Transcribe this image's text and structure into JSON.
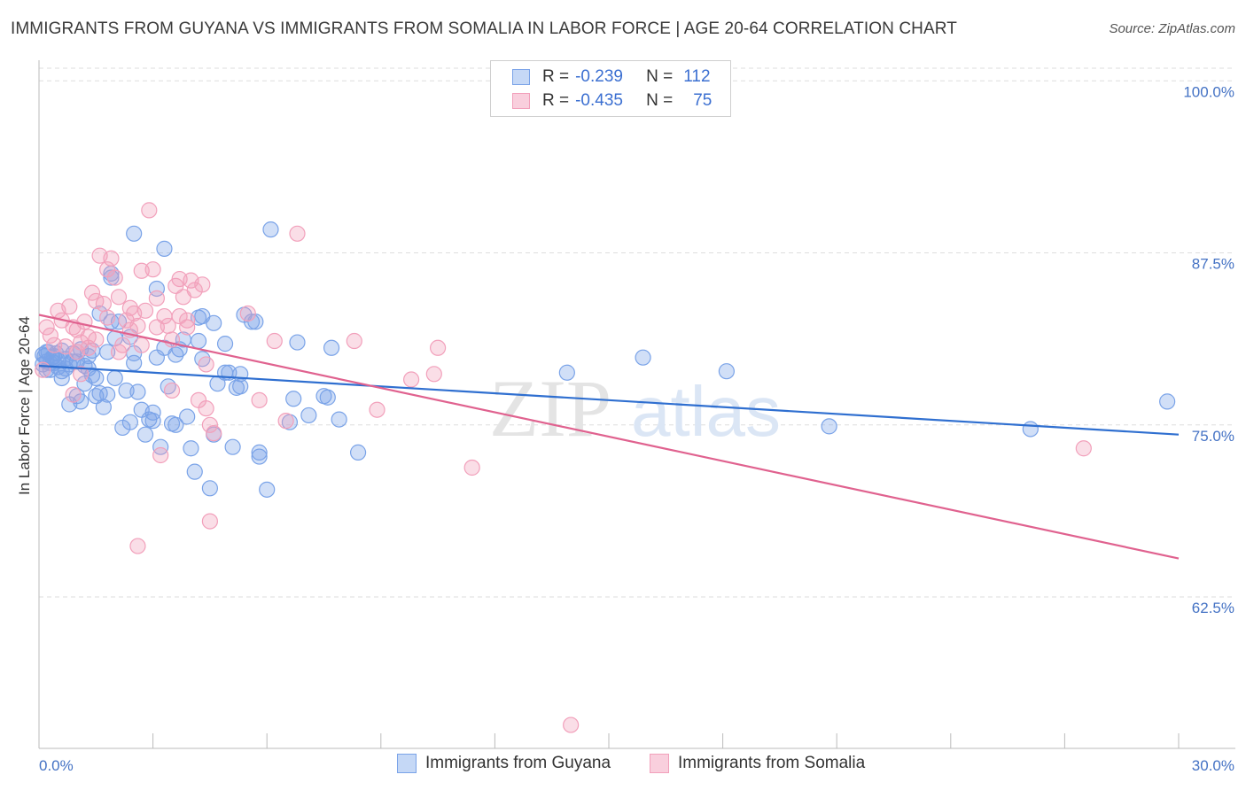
{
  "title": "IMMIGRANTS FROM GUYANA VS IMMIGRANTS FROM SOMALIA IN LABOR FORCE | AGE 20-64 CORRELATION CHART",
  "source": "Source: ZipAtlas.com",
  "watermark": {
    "zip": "ZIP",
    "atlas": "atlas"
  },
  "legend": {
    "row1": {
      "r_label": "R =",
      "r_value": "-0.239",
      "n_label": "N =",
      "n_value": "112"
    },
    "row2": {
      "r_label": "R =",
      "r_value": "-0.435",
      "n_label": "N =",
      "n_value": "75"
    }
  },
  "bottom_legend": {
    "guyana": "Immigrants from Guyana",
    "somalia": "Immigrants from Somalia"
  },
  "colors": {
    "guyana": "#7aa3e8",
    "guyana_line": "#2f6fd0",
    "somalia": "#f2a0bb",
    "somalia_line": "#e0628f",
    "axis_text": "#4472c4",
    "grid": "#dddddd"
  },
  "chart_data": {
    "type": "scatter",
    "title": "IMMIGRANTS FROM GUYANA VS IMMIGRANTS FROM SOMALIA IN LABOR FORCE | AGE 20-64 CORRELATION CHART",
    "xlabel": "",
    "ylabel": "In Labor Force | Age 20-64",
    "xlim": [
      0,
      30
    ],
    "ylim": [
      51.5,
      101.5
    ],
    "x_tick_labels": [
      "0.0%",
      "30.0%"
    ],
    "y_ticks": [
      62.5,
      75.0,
      87.5,
      100.0
    ],
    "y_tick_labels": [
      "62.5%",
      "75.0%",
      "87.5%",
      "100.0%"
    ],
    "series": [
      {
        "name": "Immigrants from Guyana",
        "r": -0.239,
        "n": 112,
        "trend": {
          "x": [
            0,
            30
          ],
          "y": [
            79.3,
            74.3
          ]
        },
        "points": [
          [
            0.1,
            80.1
          ],
          [
            0.2,
            79.6
          ],
          [
            0.2,
            80.3
          ],
          [
            0.3,
            79.5
          ],
          [
            0.4,
            80.0
          ],
          [
            0.5,
            79.2
          ],
          [
            0.5,
            79.7
          ],
          [
            0.6,
            80.4
          ],
          [
            0.7,
            79.8
          ],
          [
            0.8,
            79.4
          ],
          [
            0.9,
            80.2
          ],
          [
            1.0,
            79.6
          ],
          [
            1.1,
            80.5
          ],
          [
            1.2,
            79.3
          ],
          [
            1.3,
            80.0
          ],
          [
            0.3,
            79.0
          ],
          [
            0.6,
            78.4
          ],
          [
            0.8,
            76.5
          ],
          [
            1.0,
            77.1
          ],
          [
            1.2,
            78.0
          ],
          [
            1.4,
            78.6
          ],
          [
            1.5,
            78.4
          ],
          [
            1.6,
            77.3
          ],
          [
            1.7,
            76.3
          ],
          [
            1.8,
            77.2
          ],
          [
            1.9,
            82.5
          ],
          [
            2.0,
            81.3
          ],
          [
            2.2,
            74.8
          ],
          [
            2.3,
            77.5
          ],
          [
            2.4,
            75.2
          ],
          [
            2.5,
            79.5
          ],
          [
            2.6,
            77.4
          ],
          [
            2.8,
            74.3
          ],
          [
            2.9,
            75.4
          ],
          [
            3.0,
            75.9
          ],
          [
            3.1,
            79.9
          ],
          [
            3.2,
            73.4
          ],
          [
            3.3,
            80.6
          ],
          [
            3.4,
            77.8
          ],
          [
            3.5,
            75.1
          ],
          [
            3.6,
            80.1
          ],
          [
            3.7,
            80.5
          ],
          [
            3.8,
            81.2
          ],
          [
            3.9,
            75.6
          ],
          [
            4.0,
            73.3
          ],
          [
            4.1,
            71.6
          ],
          [
            4.2,
            81.1
          ],
          [
            4.3,
            79.8
          ],
          [
            4.5,
            70.4
          ],
          [
            4.6,
            74.3
          ],
          [
            4.7,
            78.0
          ],
          [
            4.9,
            80.9
          ],
          [
            5.0,
            78.8
          ],
          [
            5.1,
            73.4
          ],
          [
            5.2,
            77.7
          ],
          [
            5.3,
            78.7
          ],
          [
            5.6,
            82.5
          ],
          [
            5.8,
            72.7
          ],
          [
            6.0,
            70.3
          ],
          [
            6.6,
            75.2
          ],
          [
            6.7,
            76.9
          ],
          [
            7.1,
            75.7
          ],
          [
            7.5,
            77.1
          ],
          [
            7.6,
            77.0
          ],
          [
            7.9,
            75.4
          ],
          [
            8.4,
            73.0
          ],
          [
            2.5,
            88.9
          ],
          [
            3.3,
            87.8
          ],
          [
            6.1,
            89.2
          ],
          [
            3.1,
            84.9
          ],
          [
            1.9,
            85.7
          ],
          [
            1.9,
            86.0
          ],
          [
            4.2,
            82.8
          ],
          [
            4.3,
            82.9
          ],
          [
            4.6,
            82.4
          ],
          [
            5.4,
            83.0
          ],
          [
            5.7,
            82.5
          ],
          [
            1.6,
            83.1
          ],
          [
            2.1,
            82.5
          ],
          [
            2.4,
            81.4
          ],
          [
            6.8,
            81.0
          ],
          [
            7.7,
            80.6
          ],
          [
            1.4,
            80.4
          ],
          [
            1.8,
            80.3
          ],
          [
            2.5,
            80.2
          ],
          [
            3.0,
            75.3
          ],
          [
            3.6,
            75.0
          ],
          [
            1.1,
            76.7
          ],
          [
            0.7,
            79.1
          ],
          [
            0.4,
            79.5
          ],
          [
            0.2,
            79.0
          ],
          [
            0.1,
            79.4
          ],
          [
            0.15,
            80.0
          ],
          [
            0.25,
            80.3
          ],
          [
            0.35,
            79.9
          ],
          [
            0.45,
            80.2
          ],
          [
            13.9,
            78.8
          ],
          [
            15.9,
            79.9
          ],
          [
            18.1,
            78.9
          ],
          [
            20.8,
            74.9
          ],
          [
            26.1,
            74.7
          ],
          [
            29.7,
            76.7
          ],
          [
            4.9,
            78.8
          ],
          [
            5.3,
            77.8
          ],
          [
            5.8,
            73.0
          ],
          [
            2.0,
            78.4
          ],
          [
            2.7,
            76.1
          ],
          [
            1.5,
            77.1
          ],
          [
            0.9,
            79.6
          ],
          [
            1.3,
            79.1
          ],
          [
            0.6,
            78.9
          ]
        ]
      },
      {
        "name": "Immigrants from Somalia",
        "r": -0.435,
        "n": 75,
        "trend": {
          "x": [
            0,
            30
          ],
          "y": [
            83.0,
            65.3
          ]
        },
        "points": [
          [
            0.1,
            79.0
          ],
          [
            0.2,
            82.1
          ],
          [
            0.3,
            81.5
          ],
          [
            0.4,
            80.8
          ],
          [
            0.5,
            83.3
          ],
          [
            0.6,
            82.6
          ],
          [
            0.8,
            83.6
          ],
          [
            0.9,
            82.1
          ],
          [
            1.0,
            80.3
          ],
          [
            1.1,
            81.0
          ],
          [
            1.2,
            82.5
          ],
          [
            1.3,
            80.6
          ],
          [
            1.4,
            84.6
          ],
          [
            1.5,
            81.2
          ],
          [
            1.6,
            87.3
          ],
          [
            1.7,
            83.8
          ],
          [
            1.8,
            86.3
          ],
          [
            1.9,
            87.1
          ],
          [
            2.0,
            85.7
          ],
          [
            2.1,
            84.3
          ],
          [
            2.2,
            80.8
          ],
          [
            2.3,
            82.6
          ],
          [
            2.4,
            81.9
          ],
          [
            2.5,
            83.1
          ],
          [
            2.6,
            82.2
          ],
          [
            2.7,
            86.2
          ],
          [
            2.8,
            83.3
          ],
          [
            2.9,
            90.6
          ],
          [
            3.0,
            86.3
          ],
          [
            3.1,
            84.2
          ],
          [
            3.2,
            72.8
          ],
          [
            3.3,
            82.9
          ],
          [
            3.4,
            82.2
          ],
          [
            3.5,
            81.2
          ],
          [
            3.6,
            85.1
          ],
          [
            3.7,
            85.6
          ],
          [
            3.8,
            84.3
          ],
          [
            3.9,
            82.1
          ],
          [
            4.0,
            85.5
          ],
          [
            4.1,
            84.8
          ],
          [
            4.2,
            76.8
          ],
          [
            4.3,
            85.2
          ],
          [
            4.4,
            79.4
          ],
          [
            4.5,
            75.0
          ],
          [
            4.6,
            74.4
          ],
          [
            5.5,
            83.1
          ],
          [
            5.8,
            76.8
          ],
          [
            6.2,
            81.1
          ],
          [
            6.5,
            75.3
          ],
          [
            6.8,
            88.9
          ],
          [
            8.3,
            81.1
          ],
          [
            8.9,
            76.1
          ],
          [
            9.8,
            78.3
          ],
          [
            10.4,
            78.7
          ],
          [
            10.5,
            80.6
          ],
          [
            11.4,
            71.9
          ],
          [
            2.6,
            66.2
          ],
          [
            4.5,
            68.0
          ],
          [
            14.0,
            53.2
          ],
          [
            27.5,
            73.3
          ],
          [
            0.7,
            80.7
          ],
          [
            1.0,
            81.9
          ],
          [
            1.3,
            81.4
          ],
          [
            1.8,
            82.8
          ],
          [
            2.1,
            80.3
          ],
          [
            2.4,
            83.5
          ],
          [
            2.7,
            80.8
          ],
          [
            3.1,
            82.1
          ],
          [
            3.5,
            77.5
          ],
          [
            3.9,
            82.6
          ],
          [
            0.9,
            77.2
          ],
          [
            1.1,
            78.7
          ],
          [
            1.5,
            84.0
          ],
          [
            3.7,
            82.9
          ],
          [
            4.4,
            76.2
          ]
        ]
      }
    ]
  }
}
